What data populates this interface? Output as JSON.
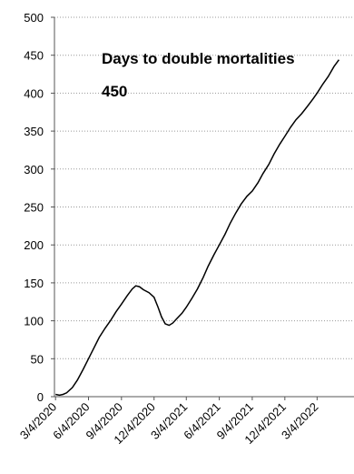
{
  "chart_data": {
    "type": "line",
    "title": "",
    "xlabel": "",
    "ylabel": "",
    "ylim": [
      0,
      500
    ],
    "y_ticks": [
      0,
      50,
      100,
      150,
      200,
      250,
      300,
      350,
      400,
      450,
      500
    ],
    "x_range": [
      "2020-03-01",
      "2022-06-15"
    ],
    "x_ticks": [
      "3/4/2020",
      "6/4/2020",
      "9/4/2020",
      "12/4/2020",
      "3/4/2021",
      "6/4/2021",
      "9/4/2021",
      "12/4/2021",
      "3/4/2022"
    ],
    "grid": "horizontal dotted",
    "legend": "none",
    "annotation": {
      "line1": "Days to double mortalities",
      "line2": "450"
    },
    "series": [
      {
        "color": "#000000",
        "points": [
          [
            "2020-03-04",
            3
          ],
          [
            "2020-03-15",
            2
          ],
          [
            "2020-03-25",
            3
          ],
          [
            "2020-04-04",
            5
          ],
          [
            "2020-04-20",
            12
          ],
          [
            "2020-05-04",
            22
          ],
          [
            "2020-05-20",
            36
          ],
          [
            "2020-06-04",
            50
          ],
          [
            "2020-06-20",
            65
          ],
          [
            "2020-07-04",
            78
          ],
          [
            "2020-07-20",
            90
          ],
          [
            "2020-08-04",
            100
          ],
          [
            "2020-08-20",
            112
          ],
          [
            "2020-09-04",
            122
          ],
          [
            "2020-09-20",
            133
          ],
          [
            "2020-10-04",
            142
          ],
          [
            "2020-10-14",
            146
          ],
          [
            "2020-10-24",
            145
          ],
          [
            "2020-11-04",
            141
          ],
          [
            "2020-11-20",
            137
          ],
          [
            "2020-12-04",
            131
          ],
          [
            "2020-12-15",
            118
          ],
          [
            "2020-12-25",
            105
          ],
          [
            "2021-01-04",
            96
          ],
          [
            "2021-01-15",
            94
          ],
          [
            "2021-01-25",
            97
          ],
          [
            "2021-02-04",
            102
          ],
          [
            "2021-02-20",
            110
          ],
          [
            "2021-03-04",
            118
          ],
          [
            "2021-03-20",
            130
          ],
          [
            "2021-04-04",
            142
          ],
          [
            "2021-04-20",
            157
          ],
          [
            "2021-05-04",
            172
          ],
          [
            "2021-05-20",
            187
          ],
          [
            "2021-06-04",
            200
          ],
          [
            "2021-06-20",
            214
          ],
          [
            "2021-07-04",
            228
          ],
          [
            "2021-07-20",
            242
          ],
          [
            "2021-08-04",
            254
          ],
          [
            "2021-08-20",
            264
          ],
          [
            "2021-09-04",
            271
          ],
          [
            "2021-09-20",
            282
          ],
          [
            "2021-10-04",
            294
          ],
          [
            "2021-10-20",
            306
          ],
          [
            "2021-11-04",
            320
          ],
          [
            "2021-11-20",
            333
          ],
          [
            "2021-12-04",
            343
          ],
          [
            "2021-12-20",
            355
          ],
          [
            "2022-01-04",
            365
          ],
          [
            "2022-01-20",
            373
          ],
          [
            "2022-02-04",
            382
          ],
          [
            "2022-02-20",
            392
          ],
          [
            "2022-03-04",
            400
          ],
          [
            "2022-03-20",
            412
          ],
          [
            "2022-04-04",
            422
          ],
          [
            "2022-04-20",
            435
          ],
          [
            "2022-05-04",
            444
          ]
        ]
      }
    ]
  }
}
